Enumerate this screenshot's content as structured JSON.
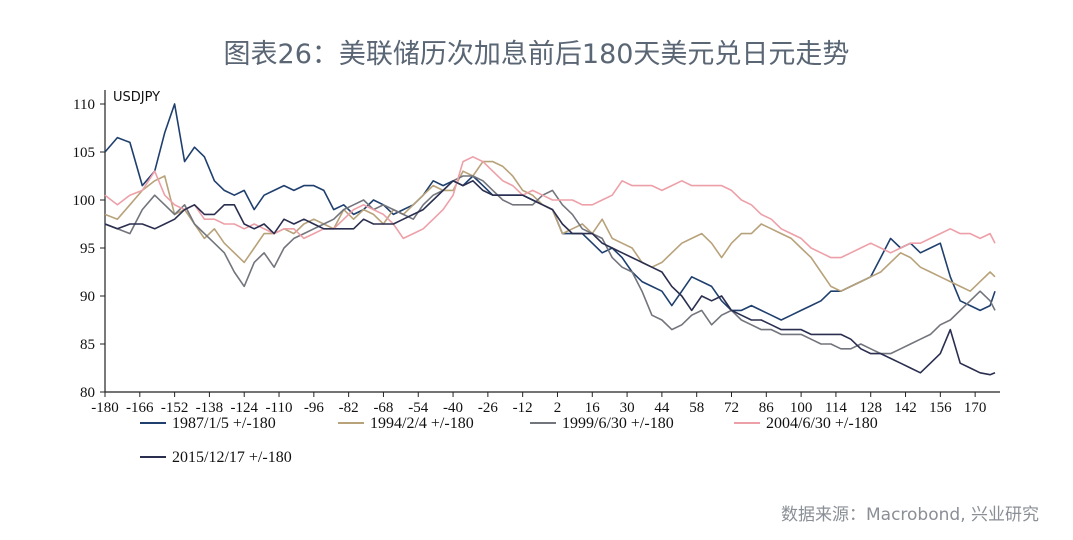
{
  "title": "图表26：美联储历次加息前后180天美元兑日元走势",
  "source": "数据来源：Macrobond, 兴业研究",
  "chart_data": {
    "type": "line",
    "unit_label": "USDJPY",
    "xlim": [
      -180,
      180
    ],
    "ylim": [
      80,
      110
    ],
    "y_ticks": [
      80,
      85,
      90,
      95,
      100,
      105,
      110
    ],
    "x_ticks": [
      -180,
      -166,
      -152,
      -138,
      -124,
      -110,
      -96,
      -82,
      -68,
      -54,
      -40,
      -26,
      -12,
      2,
      16,
      30,
      44,
      58,
      72,
      86,
      100,
      114,
      128,
      142,
      156,
      170
    ],
    "x_tick_labels": [
      "-180",
      "-166",
      "-152",
      "-138",
      "-124",
      "-110",
      "-96",
      "-82",
      "-68",
      "-54",
      "-40",
      "-26",
      "-12",
      "2",
      "16",
      "30",
      "44",
      "58",
      "72",
      "86",
      "100",
      "114",
      "128",
      "142",
      "156",
      "170"
    ],
    "series": [
      {
        "name": "1987/1/5 +/-180",
        "color": "#1f3f6e",
        "x": [
          -180,
          -175,
          -170,
          -165,
          -160,
          -156,
          -152,
          -148,
          -144,
          -140,
          -136,
          -132,
          -128,
          -124,
          -120,
          -116,
          -112,
          -108,
          -104,
          -100,
          -96,
          -92,
          -88,
          -84,
          -80,
          -76,
          -72,
          -68,
          -64,
          -60,
          -56,
          -52,
          -48,
          -44,
          -40,
          -36,
          -32,
          -28,
          -24,
          -20,
          -16,
          -12,
          -8,
          -4,
          0,
          4,
          8,
          12,
          16,
          20,
          24,
          28,
          32,
          36,
          40,
          44,
          48,
          52,
          56,
          60,
          64,
          68,
          72,
          76,
          80,
          84,
          88,
          92,
          96,
          100,
          104,
          108,
          112,
          116,
          120,
          124,
          128,
          132,
          136,
          140,
          144,
          148,
          152,
          156,
          160,
          164,
          168,
          172,
          176,
          178
        ],
        "values": [
          105,
          106.5,
          106,
          101.5,
          103,
          107,
          110,
          104,
          105.5,
          104.5,
          102,
          101,
          100.5,
          101,
          99,
          100.5,
          101,
          101.5,
          101,
          101.5,
          101.5,
          101,
          99,
          99.5,
          98.5,
          99,
          100,
          99.5,
          98.5,
          99,
          99.5,
          100.5,
          102,
          101.5,
          102,
          101.5,
          102.5,
          101.5,
          100.5,
          100.5,
          100.5,
          100.5,
          100,
          99.5,
          99,
          96.5,
          96.5,
          96.5,
          95.5,
          94.5,
          95,
          94,
          92.5,
          91.5,
          91,
          90.5,
          89,
          90.5,
          92,
          91.5,
          91,
          89.5,
          88.5,
          88.5,
          89,
          88.5,
          88,
          87.5,
          88,
          88.5,
          89,
          89.5,
          90.5,
          90.5,
          91,
          91.5,
          92,
          94,
          96,
          95,
          95.5,
          94.5,
          95,
          95.5,
          92,
          89.5,
          89,
          88.5,
          89,
          90.5
        ]
      },
      {
        "name": "1994/2/4 +/-180",
        "color": "#b8a27a",
        "x": [
          -180,
          -175,
          -170,
          -165,
          -160,
          -156,
          -152,
          -148,
          -144,
          -140,
          -136,
          -132,
          -128,
          -124,
          -120,
          -116,
          -112,
          -108,
          -104,
          -100,
          -96,
          -92,
          -88,
          -84,
          -80,
          -76,
          -72,
          -68,
          -64,
          -60,
          -56,
          -52,
          -48,
          -44,
          -40,
          -36,
          -32,
          -28,
          -24,
          -20,
          -16,
          -12,
          -8,
          -4,
          0,
          4,
          8,
          12,
          16,
          20,
          24,
          28,
          32,
          36,
          40,
          44,
          48,
          52,
          56,
          60,
          64,
          68,
          72,
          76,
          80,
          84,
          88,
          92,
          96,
          100,
          104,
          108,
          112,
          116,
          120,
          124,
          128,
          132,
          136,
          140,
          144,
          148,
          152,
          156,
          160,
          164,
          168,
          172,
          176,
          178
        ],
        "values": [
          98.5,
          98,
          99.5,
          101,
          102,
          102.5,
          98.5,
          99,
          97.5,
          96,
          97,
          95.5,
          94.5,
          93.5,
          95,
          96.5,
          96.5,
          97,
          96.5,
          97.5,
          98,
          97.5,
          97,
          99,
          98,
          99,
          98.5,
          97.5,
          99,
          98.5,
          99.5,
          100.5,
          101.5,
          101,
          101,
          103,
          102.5,
          104,
          104,
          103.5,
          102.5,
          101,
          100.5,
          99.5,
          99,
          96.5,
          97,
          97.5,
          96.5,
          98,
          96,
          95.5,
          95,
          93.5,
          93,
          93.5,
          94.5,
          95.5,
          96,
          96.5,
          95.5,
          94,
          95.5,
          96.5,
          96.5,
          97.5,
          97,
          96.5,
          96,
          95,
          94,
          92.5,
          91,
          90.5,
          91,
          91.5,
          92,
          92.5,
          93.5,
          94.5,
          94,
          93,
          92.5,
          92,
          91.5,
          91,
          90.5,
          91.5,
          92.5,
          92
        ]
      },
      {
        "name": "1999/6/30 +/-180",
        "color": "#73757d",
        "x": [
          -180,
          -175,
          -170,
          -165,
          -160,
          -156,
          -152,
          -148,
          -144,
          -140,
          -136,
          -132,
          -128,
          -124,
          -120,
          -116,
          -112,
          -108,
          -104,
          -100,
          -96,
          -92,
          -88,
          -84,
          -80,
          -76,
          -72,
          -68,
          -64,
          -60,
          -56,
          -52,
          -48,
          -44,
          -40,
          -36,
          -32,
          -28,
          -24,
          -20,
          -16,
          -12,
          -8,
          -4,
          0,
          4,
          8,
          12,
          16,
          20,
          24,
          28,
          32,
          36,
          40,
          44,
          48,
          52,
          56,
          60,
          64,
          68,
          72,
          76,
          80,
          84,
          88,
          92,
          96,
          100,
          104,
          108,
          112,
          116,
          120,
          124,
          128,
          132,
          136,
          140,
          144,
          148,
          152,
          156,
          160,
          164,
          168,
          172,
          176,
          178
        ],
        "values": [
          97.5,
          97,
          96.5,
          99,
          100.5,
          99.5,
          98.5,
          99.5,
          97.5,
          96.5,
          95.5,
          94.5,
          92.5,
          91,
          93.5,
          94.5,
          93,
          95,
          96,
          96.5,
          97,
          97.5,
          98,
          99,
          99.5,
          100,
          99,
          99.5,
          99,
          98.5,
          98,
          99.5,
          100.5,
          101,
          102,
          102.5,
          102.5,
          102,
          101,
          100,
          99.5,
          99.5,
          99.5,
          100.5,
          101,
          99.5,
          98.5,
          97,
          96.5,
          96,
          94,
          93,
          92.5,
          90.5,
          88,
          87.5,
          86.5,
          87,
          88,
          88.5,
          87,
          88,
          88.5,
          87.5,
          87,
          86.5,
          86.5,
          86,
          86,
          86,
          85.5,
          85,
          85,
          84.5,
          84.5,
          85,
          84.5,
          84,
          84,
          84.5,
          85,
          85.5,
          86,
          87,
          87.5,
          88.5,
          89.5,
          90.5,
          89.5,
          88.5
        ]
      },
      {
        "name": "2004/6/30 +/-180",
        "color": "#eda0a8",
        "x": [
          -180,
          -175,
          -170,
          -165,
          -160,
          -156,
          -152,
          -148,
          -144,
          -140,
          -136,
          -132,
          -128,
          -124,
          -120,
          -116,
          -112,
          -108,
          -104,
          -100,
          -96,
          -92,
          -88,
          -84,
          -80,
          -76,
          -72,
          -68,
          -64,
          -60,
          -56,
          -52,
          -48,
          -44,
          -40,
          -36,
          -32,
          -28,
          -24,
          -20,
          -16,
          -12,
          -8,
          -4,
          0,
          4,
          8,
          12,
          16,
          20,
          24,
          28,
          32,
          36,
          40,
          44,
          48,
          52,
          56,
          60,
          64,
          68,
          72,
          76,
          80,
          84,
          88,
          92,
          96,
          100,
          104,
          108,
          112,
          116,
          120,
          124,
          128,
          132,
          136,
          140,
          144,
          148,
          152,
          156,
          160,
          164,
          168,
          172,
          176,
          178
        ],
        "values": [
          100.5,
          99.5,
          100.5,
          101,
          103,
          100.5,
          99.5,
          99,
          99.5,
          98,
          98,
          97.5,
          97.5,
          97,
          97.5,
          97,
          96.5,
          97,
          97,
          96,
          96.5,
          97,
          97,
          98,
          99,
          99.5,
          99,
          98.5,
          97.5,
          96,
          96.5,
          97,
          98,
          99,
          100.5,
          104,
          104.5,
          104,
          103,
          102,
          101.5,
          100.5,
          101,
          100.5,
          100,
          100,
          100,
          99.5,
          99.5,
          100,
          100.5,
          102,
          101.5,
          101.5,
          101.5,
          101,
          101.5,
          102,
          101.5,
          101.5,
          101.5,
          101.5,
          101,
          100,
          99.5,
          98.5,
          98,
          97,
          96.5,
          96,
          95,
          94.5,
          94,
          94,
          94.5,
          95,
          95.5,
          95,
          94.5,
          95,
          95.5,
          95.5,
          96,
          96.5,
          97,
          96.5,
          96.5,
          96,
          96.5,
          95.5
        ]
      },
      {
        "name": "2015/12/17 +/-180",
        "color": "#2b2f4f",
        "x": [
          -180,
          -175,
          -170,
          -165,
          -160,
          -156,
          -152,
          -148,
          -144,
          -140,
          -136,
          -132,
          -128,
          -124,
          -120,
          -116,
          -112,
          -108,
          -104,
          -100,
          -96,
          -92,
          -88,
          -84,
          -80,
          -76,
          -72,
          -68,
          -64,
          -60,
          -56,
          -52,
          -48,
          -44,
          -40,
          -36,
          -32,
          -28,
          -24,
          -20,
          -16,
          -12,
          -8,
          -4,
          0,
          4,
          8,
          12,
          16,
          20,
          24,
          28,
          32,
          36,
          40,
          44,
          48,
          52,
          56,
          60,
          64,
          68,
          72,
          76,
          80,
          84,
          88,
          92,
          96,
          100,
          104,
          108,
          112,
          116,
          120,
          124,
          128,
          132,
          136,
          140,
          144,
          148,
          152,
          156,
          160,
          164,
          168,
          172,
          176,
          178
        ],
        "values": [
          97.5,
          97,
          97.5,
          97.5,
          97,
          97.5,
          98,
          99,
          99.5,
          98.5,
          98.5,
          99.5,
          99.5,
          97.5,
          97,
          97.5,
          96.5,
          98,
          97.5,
          98,
          97.5,
          97,
          97,
          97,
          97,
          98,
          97.5,
          97.5,
          97.5,
          98,
          98.5,
          99,
          100,
          101,
          102,
          101.5,
          102,
          101,
          100.5,
          100.5,
          100.5,
          100.5,
          100,
          99.5,
          99,
          97.5,
          96.5,
          96.5,
          96.5,
          95.5,
          95,
          94.5,
          94,
          93.5,
          93,
          92.5,
          91,
          90,
          88.5,
          90,
          89.5,
          90,
          88.5,
          88,
          87.5,
          87.5,
          87,
          86.5,
          86.5,
          86.5,
          86,
          86,
          86,
          86,
          85.5,
          84.5,
          84,
          84,
          83.5,
          83,
          82.5,
          82,
          83,
          84,
          86.5,
          83,
          82.5,
          82,
          81.8,
          82
        ]
      }
    ],
    "legend_rows": [
      [
        "1987/1/5 +/-180",
        "1994/2/4 +/-180",
        "1999/6/30 +/-180",
        "2004/6/30 +/-180"
      ],
      [
        "2015/12/17 +/-180"
      ]
    ],
    "grid": false,
    "legend_position": "bottom"
  }
}
